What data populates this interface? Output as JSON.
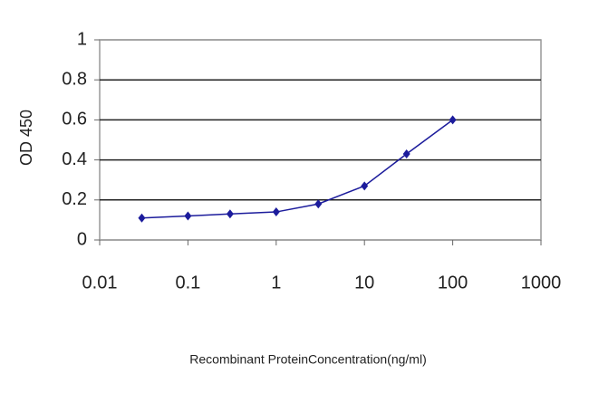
{
  "chart_data": {
    "type": "line",
    "x_label": "Recombinant ProteinConcentration(ng/ml)",
    "y_label": "OD 450",
    "x": [
      0.03,
      0.1,
      0.3,
      1,
      3,
      10,
      30,
      100
    ],
    "series": [
      {
        "color": "#1c1c9c",
        "values": [
          0.11,
          0.12,
          0.13,
          0.14,
          0.18,
          0.27,
          0.43,
          0.6
        ]
      }
    ],
    "xscale": "log",
    "xlim": [
      0.01,
      1000
    ],
    "xticks": [
      0.01,
      0.1,
      1,
      10,
      100,
      1000
    ],
    "ylim": [
      0,
      1
    ],
    "yticks": [
      0,
      0.2,
      0.4,
      0.6,
      0.8,
      1
    ],
    "grid": true
  }
}
